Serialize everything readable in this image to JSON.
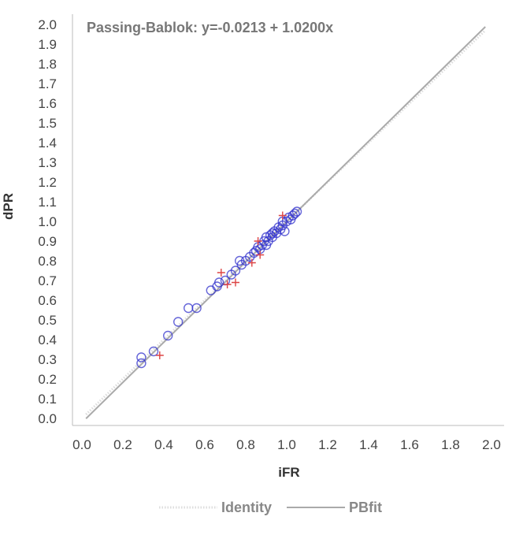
{
  "chart_data": {
    "type": "scatter",
    "annotation": "Passing-Bablok: y=-0.0213 + 1.0200x",
    "xlabel": "iFR",
    "ylabel": "dPR",
    "xlim": [
      0.0,
      2.0
    ],
    "ylim": [
      0.0,
      2.0
    ],
    "x_ticks": [
      "0.0",
      "0.2",
      "0.4",
      "0.6",
      "0.8",
      "1.0",
      "1.2",
      "1.4",
      "1.6",
      "1.8",
      "2.0"
    ],
    "y_ticks": [
      "0.0",
      "0.1",
      "0.2",
      "0.3",
      "0.4",
      "0.5",
      "0.6",
      "0.7",
      "0.8",
      "0.9",
      "1.0",
      "1.1",
      "1.2",
      "1.3",
      "1.4",
      "1.5",
      "1.6",
      "1.7",
      "1.8",
      "1.9",
      "2.0"
    ],
    "grid": false,
    "legend_position": "bottom",
    "lines": [
      {
        "name": "Identity",
        "intercept": 0.0,
        "slope": 1.0,
        "color": "#dddddd",
        "style": "dotted"
      },
      {
        "name": "PBfit",
        "intercept": -0.0213,
        "slope": 1.02,
        "color": "#aaaaaa",
        "style": "solid"
      }
    ],
    "series": [
      {
        "marker": "circle",
        "color": "#3333cc",
        "points": [
          [
            0.29,
            0.28
          ],
          [
            0.29,
            0.31
          ],
          [
            0.35,
            0.34
          ],
          [
            0.42,
            0.42
          ],
          [
            0.47,
            0.49
          ],
          [
            0.52,
            0.56
          ],
          [
            0.56,
            0.56
          ],
          [
            0.63,
            0.65
          ],
          [
            0.66,
            0.67
          ],
          [
            0.67,
            0.69
          ],
          [
            0.7,
            0.7
          ],
          [
            0.73,
            0.73
          ],
          [
            0.75,
            0.75
          ],
          [
            0.77,
            0.8
          ],
          [
            0.78,
            0.78
          ],
          [
            0.8,
            0.8
          ],
          [
            0.82,
            0.82
          ],
          [
            0.84,
            0.84
          ],
          [
            0.85,
            0.85
          ],
          [
            0.86,
            0.87
          ],
          [
            0.87,
            0.86
          ],
          [
            0.88,
            0.88
          ],
          [
            0.89,
            0.9
          ],
          [
            0.9,
            0.92
          ],
          [
            0.9,
            0.88
          ],
          [
            0.91,
            0.9
          ],
          [
            0.92,
            0.93
          ],
          [
            0.93,
            0.92
          ],
          [
            0.93,
            0.94
          ],
          [
            0.94,
            0.95
          ],
          [
            0.95,
            0.94
          ],
          [
            0.96,
            0.97
          ],
          [
            0.97,
            0.96
          ],
          [
            0.98,
            0.98
          ],
          [
            0.98,
            1.0
          ],
          [
            0.99,
            0.95
          ],
          [
            1.0,
            1.0
          ],
          [
            1.01,
            1.02
          ],
          [
            1.02,
            1.01
          ],
          [
            1.03,
            1.03
          ],
          [
            1.04,
            1.04
          ],
          [
            1.05,
            1.05
          ]
        ]
      },
      {
        "marker": "cross",
        "color": "#dd4444",
        "points": [
          [
            0.38,
            0.32
          ],
          [
            0.68,
            0.74
          ],
          [
            0.71,
            0.68
          ],
          [
            0.75,
            0.69
          ],
          [
            0.83,
            0.79
          ],
          [
            0.86,
            0.9
          ],
          [
            0.87,
            0.83
          ],
          [
            0.98,
            1.03
          ]
        ]
      }
    ]
  }
}
